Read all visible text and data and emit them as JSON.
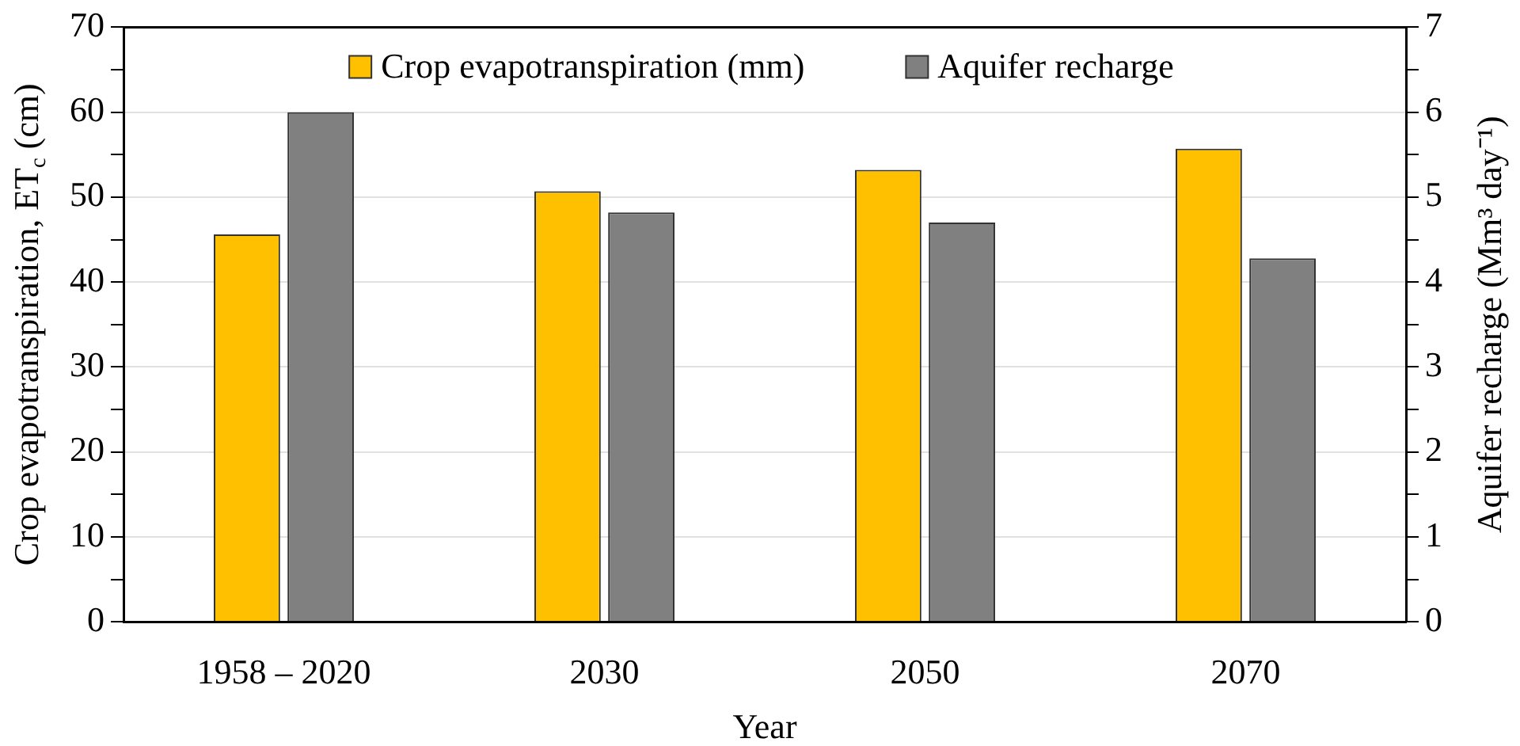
{
  "chart_data": {
    "type": "bar",
    "categories": [
      "1958 – 2020",
      "2030",
      "2050",
      "2070"
    ],
    "series": [
      {
        "name": "Crop evapotranspiration (mm)",
        "color": "#ffc000",
        "values": [
          45.6,
          50.7,
          53.2,
          55.7
        ]
      },
      {
        "name": "Aquifer recharge",
        "color": "#808080",
        "values": [
          6.0,
          4.82,
          4.7,
          4.28
        ],
        "axis": "y2"
      }
    ],
    "xlabel": "Year",
    "ylabel": "Crop evapotranspiration, ET$_{c}$ (cm)",
    "y2label": "Aquifer recharge (Mm³ day⁻¹)",
    "ylim": [
      0,
      70
    ],
    "yticks": [
      0,
      {
        "value": 5,
        "label": null
      },
      10,
      {
        "value": 15,
        "label": null
      },
      20,
      {
        "value": 25,
        "label": null
      },
      30,
      {
        "value": 35,
        "label": null
      },
      40,
      {
        "value": 45,
        "label": null
      },
      50,
      {
        "value": 55,
        "label": null
      },
      60,
      {
        "value": 65,
        "label": null
      },
      70
    ],
    "y2lim": [
      0,
      7
    ],
    "y2ticks": [
      0,
      {
        "value": 0.5,
        "label": null
      },
      1,
      {
        "value": 1.5,
        "label": null
      },
      2,
      {
        "value": 2.5,
        "label": null
      },
      3,
      {
        "value": 3.5,
        "label": null
      },
      4,
      {
        "value": 4.5,
        "label": null
      },
      5,
      {
        "value": 5.5,
        "label": null
      },
      6,
      {
        "value": 6.5,
        "label": null
      },
      7
    ],
    "grid": "y",
    "legend": "top"
  }
}
